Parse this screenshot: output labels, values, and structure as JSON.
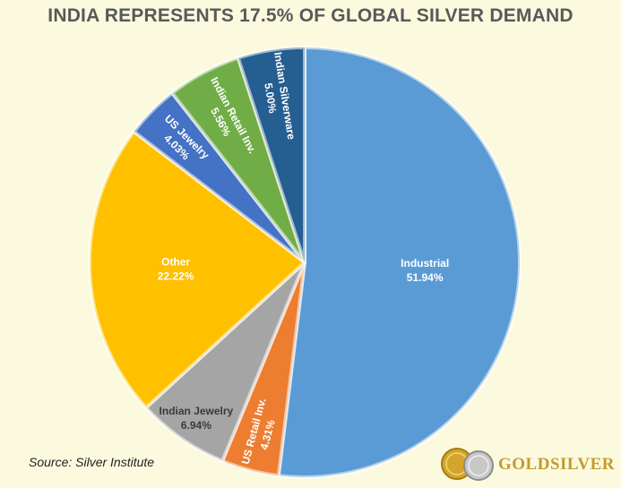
{
  "title": "INDIA REPRESENTS 17.5% OF GLOBAL SILVER DEMAND",
  "source": "Source: Silver Institute",
  "logo_text": "GOLDSILVER",
  "chart_data": {
    "type": "pie",
    "title": "INDIA REPRESENTS 17.5% OF GLOBAL SILVER DEMAND",
    "slices": [
      {
        "label": "Industrial",
        "value": 51.94,
        "value_label": "51.94%",
        "color": "#5b9bd5"
      },
      {
        "label": "US Retail Inv.",
        "value": 4.31,
        "value_label": "4.31%",
        "color": "#ed7d31"
      },
      {
        "label": "Indian Jewelry",
        "value": 6.94,
        "value_label": "6.94%",
        "color": "#a5a5a5"
      },
      {
        "label": "Other",
        "value": 22.22,
        "value_label": "22.22%",
        "color": "#ffc000"
      },
      {
        "label": "US Jewelry",
        "value": 4.03,
        "value_label": "4.03%",
        "color": "#4472c4"
      },
      {
        "label": "Indian Retail Inv.",
        "value": 5.56,
        "value_label": "5.56%",
        "color": "#70ad47"
      },
      {
        "label": "Indian Silverware",
        "value": 5.0,
        "value_label": "5.00%",
        "color": "#255e91"
      }
    ]
  }
}
